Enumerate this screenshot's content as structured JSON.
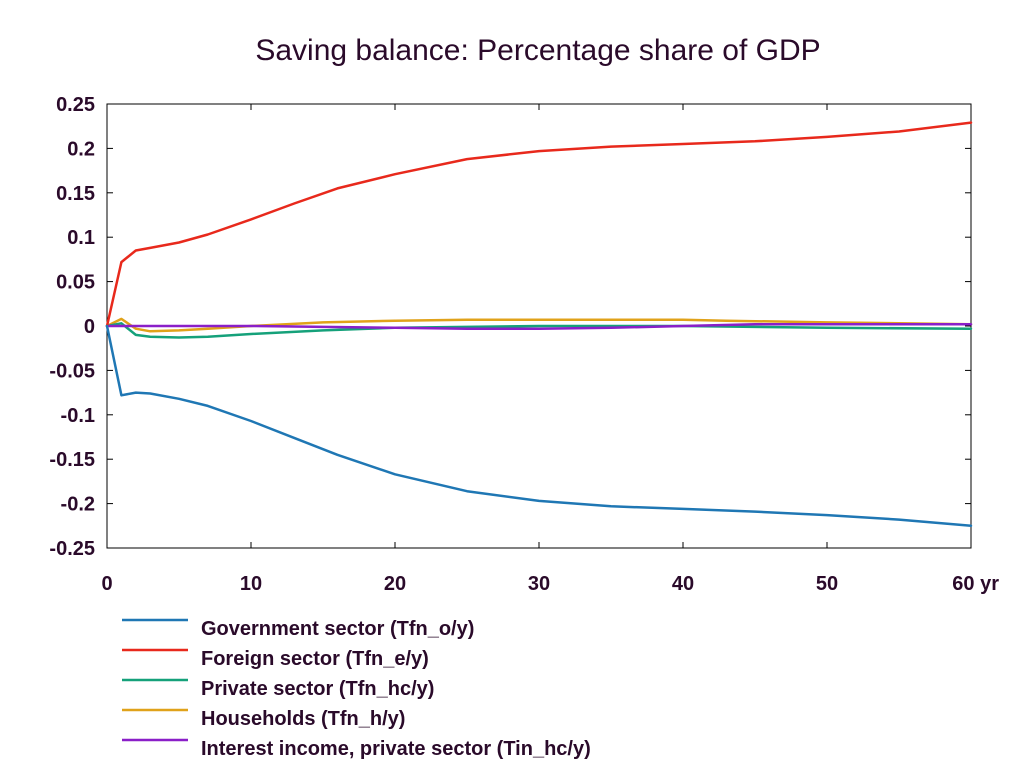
{
  "chart_data": {
    "type": "line",
    "title": "Saving balance: Percentage share of GDP",
    "xlabel": "yr",
    "ylabel": "",
    "xlim": [
      0,
      60
    ],
    "ylim": [
      -0.25,
      0.25
    ],
    "x_ticks": [
      0,
      10,
      20,
      30,
      40,
      50,
      60
    ],
    "x_tick_labels": [
      "0",
      "10",
      "20",
      "30",
      "40",
      "50",
      "60 yr"
    ],
    "y_ticks": [
      -0.25,
      -0.2,
      -0.15,
      -0.1,
      -0.05,
      0,
      0.05,
      0.1,
      0.15,
      0.2,
      0.25
    ],
    "y_tick_labels": [
      "-0.25",
      "-0.2",
      "-0.15",
      "-0.1",
      "-0.05",
      "0",
      "0.05",
      "0.1",
      "0.15",
      "0.2",
      "0.25"
    ],
    "grid": false,
    "legend_position": "bottom",
    "series": [
      {
        "name": "Government sector (Tfn_o/y)",
        "color": "#1f77b4",
        "x": [
          0,
          1,
          2,
          3,
          5,
          7,
          10,
          13,
          16,
          20,
          25,
          30,
          35,
          40,
          45,
          50,
          55,
          60
        ],
        "y": [
          0,
          -0.078,
          -0.075,
          -0.076,
          -0.082,
          -0.09,
          -0.107,
          -0.126,
          -0.145,
          -0.167,
          -0.186,
          -0.197,
          -0.203,
          -0.206,
          -0.209,
          -0.213,
          -0.218,
          -0.225
        ]
      },
      {
        "name": "Foreign sector (Tfn_e/y)",
        "color": "#e8291c",
        "x": [
          0,
          1,
          2,
          3,
          5,
          7,
          10,
          13,
          16,
          20,
          25,
          30,
          35,
          40,
          45,
          50,
          55,
          60
        ],
        "y": [
          0,
          0.072,
          0.085,
          0.088,
          0.094,
          0.103,
          0.12,
          0.138,
          0.155,
          0.171,
          0.188,
          0.197,
          0.202,
          0.205,
          0.208,
          0.213,
          0.219,
          0.229
        ]
      },
      {
        "name": "Private sector (Tfn_hc/y)",
        "color": "#15a17a",
        "x": [
          0,
          1,
          2,
          3,
          5,
          7,
          10,
          15,
          20,
          25,
          30,
          40,
          50,
          60
        ],
        "y": [
          0,
          0.003,
          -0.01,
          -0.012,
          -0.013,
          -0.012,
          -0.009,
          -0.005,
          -0.002,
          -0.001,
          0,
          0,
          -0.002,
          -0.003
        ]
      },
      {
        "name": "Households (Tfn_h/y)",
        "color": "#e0a21a",
        "x": [
          0,
          1,
          2,
          3,
          5,
          7,
          10,
          15,
          20,
          25,
          30,
          35,
          40,
          43,
          50,
          55,
          60
        ],
        "y": [
          0,
          0.008,
          -0.003,
          -0.006,
          -0.005,
          -0.003,
          0,
          0.004,
          0.006,
          0.007,
          0.007,
          0.007,
          0.007,
          0.006,
          0.004,
          0.003,
          0.002
        ]
      },
      {
        "name": "Interest income, private sector (Tin_hc/y)",
        "color": "#8a1fc8",
        "x": [
          0,
          5,
          10,
          15,
          20,
          25,
          30,
          35,
          40,
          45,
          50,
          55,
          60
        ],
        "y": [
          0,
          0,
          0,
          -0.001,
          -0.002,
          -0.003,
          -0.003,
          -0.002,
          0,
          0.002,
          0.002,
          0.002,
          0.002
        ]
      }
    ]
  }
}
